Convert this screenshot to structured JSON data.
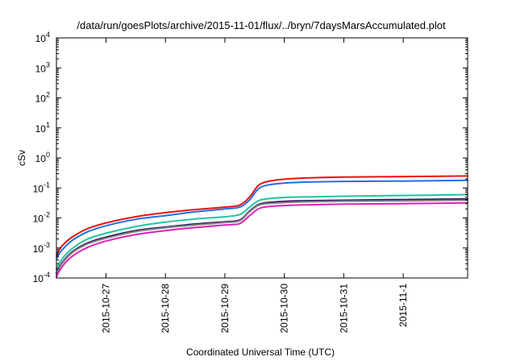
{
  "chart_data": {
    "type": "line",
    "title": "/data/run/goesPlots/archive/2015-11-01/flux/../bryn/7daysMarsAccumulated.plot",
    "xlabel": "Coordinated Universal Time (UTC)",
    "ylabel": "cSv",
    "yscale": "log",
    "ylim": [
      0.0001,
      10000
    ],
    "xlim": [
      "2015-10-26T04:00",
      "2015-11-02T02:00"
    ],
    "y_ticks": [
      {
        "value": 0.0001,
        "base": "10",
        "exp": "-4"
      },
      {
        "value": 0.001,
        "base": "10",
        "exp": "-3"
      },
      {
        "value": 0.01,
        "base": "10",
        "exp": "-2"
      },
      {
        "value": 0.1,
        "base": "10",
        "exp": "-1"
      },
      {
        "value": 1,
        "base": "10",
        "exp": "0"
      },
      {
        "value": 10,
        "base": "10",
        "exp": "1"
      },
      {
        "value": 100,
        "base": "10",
        "exp": "2"
      },
      {
        "value": 1000,
        "base": "10",
        "exp": "3"
      },
      {
        "value": 10000,
        "base": "10",
        "exp": "4"
      }
    ],
    "x_ticks": [
      {
        "value": "2015-10-27T00:00",
        "label": "2015-10-27"
      },
      {
        "value": "2015-10-28T00:00",
        "label": "2015-10-28"
      },
      {
        "value": "2015-10-29T00:00",
        "label": "2015-10-29"
      },
      {
        "value": "2015-10-30T00:00",
        "label": "2015-10-30"
      },
      {
        "value": "2015-10-31T00:00",
        "label": "2015-10-31"
      },
      {
        "value": "2015-11-01T00:00",
        "label": "2015-11-1"
      }
    ],
    "grid": false,
    "x": [
      "2015-10-26T04:00",
      "2015-10-26T06:00",
      "2015-10-26T10:00",
      "2015-10-26T16:00",
      "2015-10-27T00:00",
      "2015-10-27T12:00",
      "2015-10-28T00:00",
      "2015-10-28T12:00",
      "2015-10-29T00:00",
      "2015-10-29T06:00",
      "2015-10-29T10:00",
      "2015-10-29T14:00",
      "2015-10-29T20:00",
      "2015-10-30T06:00",
      "2015-10-31T00:00",
      "2015-11-01T00:00",
      "2015-11-02T02:00"
    ],
    "series": [
      {
        "color": "#e8120b",
        "values": [
          0.00055,
          0.0011,
          0.0022,
          0.0042,
          0.0068,
          0.011,
          0.015,
          0.019,
          0.023,
          0.027,
          0.05,
          0.13,
          0.18,
          0.21,
          0.23,
          0.24,
          0.25
        ]
      },
      {
        "color": "#1f6ef0",
        "values": [
          0.00045,
          0.0008,
          0.0017,
          0.0033,
          0.0055,
          0.009,
          0.012,
          0.016,
          0.02,
          0.023,
          0.04,
          0.1,
          0.135,
          0.155,
          0.165,
          0.17,
          0.18
        ]
      },
      {
        "color": "#1fc4a0",
        "values": [
          0.0002,
          0.0004,
          0.0009,
          0.0019,
          0.0031,
          0.0052,
          0.0073,
          0.0092,
          0.011,
          0.013,
          0.023,
          0.039,
          0.046,
          0.05,
          0.053,
          0.056,
          0.06
        ]
      },
      {
        "color": "#2a1a5e",
        "values": [
          0.00015,
          0.0003,
          0.0007,
          0.0014,
          0.0023,
          0.0038,
          0.005,
          0.0063,
          0.0075,
          0.0085,
          0.017,
          0.029,
          0.034,
          0.037,
          0.039,
          0.041,
          0.043
        ]
      },
      {
        "color": "#888888",
        "values": [
          0.00014,
          0.00028,
          0.00065,
          0.0013,
          0.0021,
          0.0035,
          0.0047,
          0.0058,
          0.007,
          0.008,
          0.016,
          0.027,
          0.031,
          0.034,
          0.036,
          0.037,
          0.039
        ]
      },
      {
        "color": "#e020b8",
        "values": [
          0.00011,
          0.00022,
          0.0005,
          0.001,
          0.0017,
          0.0028,
          0.0038,
          0.0048,
          0.0058,
          0.0065,
          0.012,
          0.021,
          0.025,
          0.027,
          0.029,
          0.03,
          0.032
        ]
      }
    ]
  }
}
